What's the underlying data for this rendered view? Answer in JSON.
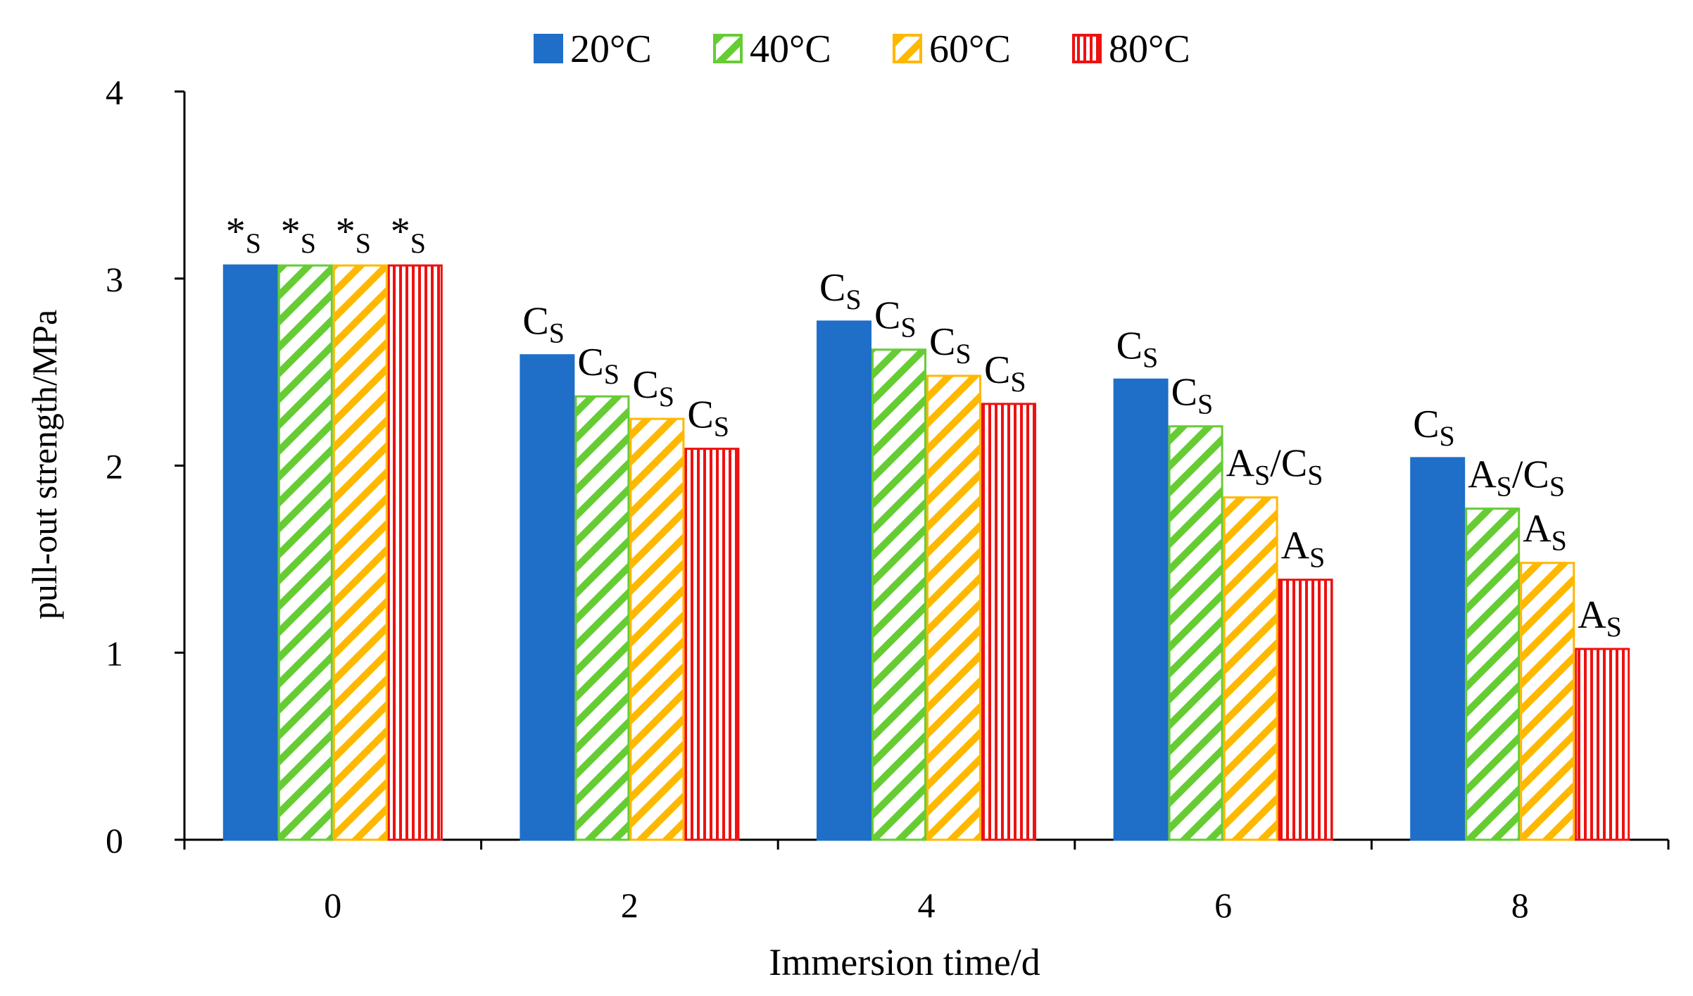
{
  "chart_data": {
    "type": "bar",
    "title": "",
    "xlabel": "Immersion time/d",
    "ylabel": "pull-out strength/MPa",
    "categories": [
      "0",
      "2",
      "4",
      "6",
      "8"
    ],
    "ylim": [
      0,
      4
    ],
    "yticks": [
      "0",
      "1",
      "2",
      "3",
      "4"
    ],
    "grid": false,
    "legend_position": "top-center",
    "series": [
      {
        "name": "20°C",
        "color": "#1F6FC9",
        "pattern": "solid",
        "values": [
          3.07,
          2.59,
          2.77,
          2.46,
          2.04
        ],
        "labels": [
          {
            "main": "*",
            "sub": "S"
          },
          {
            "main": "C",
            "sub": "S"
          },
          {
            "main": "C",
            "sub": "S"
          },
          {
            "main": "C",
            "sub": "S"
          },
          {
            "main": "C",
            "sub": "S"
          }
        ]
      },
      {
        "name": "40°C",
        "color": "#66CC33",
        "pattern": "diagonal",
        "values": [
          3.07,
          2.37,
          2.62,
          2.21,
          1.77
        ],
        "labels": [
          {
            "main": "*",
            "sub": "S"
          },
          {
            "main": "C",
            "sub": "S"
          },
          {
            "main": "C",
            "sub": "S"
          },
          {
            "main": "C",
            "sub": "S"
          },
          {
            "main": "A",
            "sub": "S",
            "suffix": "/C",
            "sub2": "S"
          }
        ]
      },
      {
        "name": "60°C",
        "color": "#FFB800",
        "pattern": "diagonal",
        "values": [
          3.07,
          2.25,
          2.48,
          1.83,
          1.48
        ],
        "labels": [
          {
            "main": "*",
            "sub": "S"
          },
          {
            "main": "C",
            "sub": "S"
          },
          {
            "main": "C",
            "sub": "S"
          },
          {
            "main": "A",
            "sub": "S",
            "suffix": "/C",
            "sub2": "S"
          },
          {
            "main": "A",
            "sub": "S"
          }
        ]
      },
      {
        "name": "80°C",
        "color": "#EE1111",
        "pattern": "vertical",
        "values": [
          3.07,
          2.09,
          2.33,
          1.39,
          1.02
        ],
        "labels": [
          {
            "main": "*",
            "sub": "S"
          },
          {
            "main": "C",
            "sub": "S"
          },
          {
            "main": "C",
            "sub": "S"
          },
          {
            "main": "A",
            "sub": "S"
          },
          {
            "main": "A",
            "sub": "S"
          }
        ]
      }
    ]
  }
}
